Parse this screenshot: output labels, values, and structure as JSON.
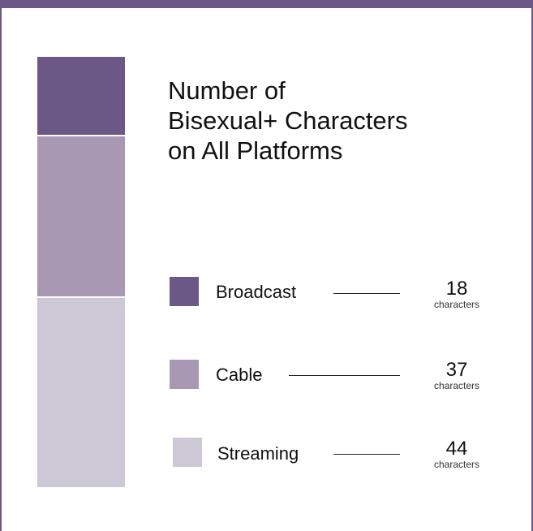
{
  "chart_data": {
    "type": "bar",
    "stacked": true,
    "title": [
      "Number of",
      "Bisexual+ Characters",
      "on All Platforms"
    ],
    "unit": "characters",
    "categories": [
      "Broadcast",
      "Cable",
      "Streaming"
    ],
    "values": [
      18,
      37,
      44
    ],
    "colors": [
      "#6b5887",
      "#a898b3",
      "#cdc8d5"
    ],
    "legend_position": "right"
  }
}
